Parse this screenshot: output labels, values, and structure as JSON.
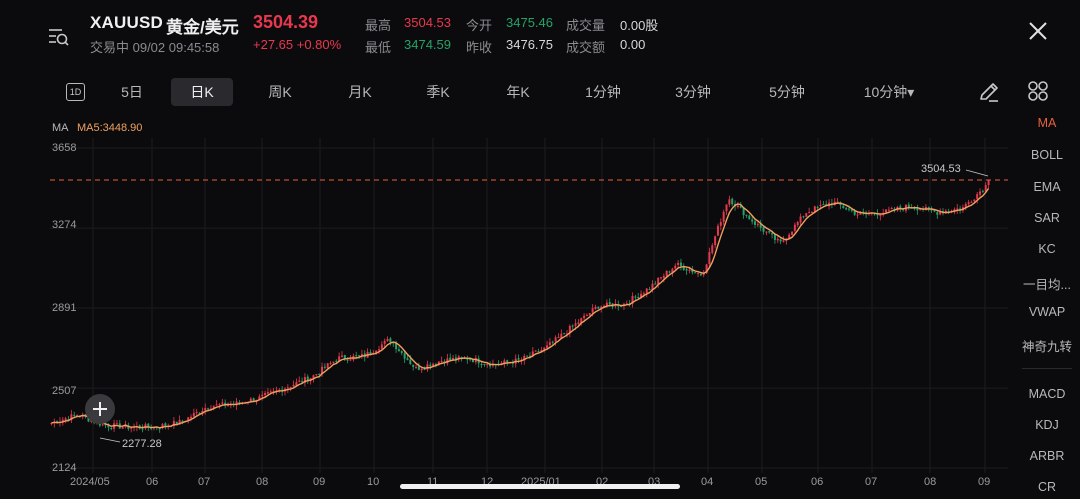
{
  "header": {
    "symbol": "XAUUSD",
    "name": "黄金/美元",
    "price": "3504.39",
    "status": "交易中 09/02 09:45:58",
    "change": "+27.65 +0.80%",
    "stats": [
      {
        "label": "最高",
        "value": "3504.53",
        "color": "red"
      },
      {
        "label": "今开",
        "value": "3475.46",
        "color": "green"
      },
      {
        "label": "成交量",
        "value": "0.00股",
        "color": "white"
      },
      {
        "label": "最低",
        "value": "3474.59",
        "color": "green"
      },
      {
        "label": "昨收",
        "value": "3476.75",
        "color": "white"
      },
      {
        "label": "成交额",
        "value": "0.00",
        "color": "white"
      }
    ]
  },
  "tabs": {
    "icon_label": "1D",
    "items": [
      "5日",
      "日K",
      "周K",
      "月K",
      "季K",
      "年K",
      "1分钟",
      "3分钟",
      "5分钟",
      "10分钟▾"
    ],
    "active": "日K"
  },
  "indicator": {
    "name": "MA",
    "value": "MA5:3448.90"
  },
  "sidebar": {
    "items": [
      "MA",
      "BOLL",
      "EMA",
      "SAR",
      "KC",
      "一目均...",
      "VWAP",
      "神奇九转",
      "MACD",
      "KDJ",
      "ARBR",
      "CR"
    ],
    "active": "MA"
  },
  "colors": {
    "up": "#e8384f",
    "down": "#26a269",
    "ma": "#f0a060",
    "accent": "#e8603c"
  },
  "chart_data": {
    "type": "candlestick",
    "title": "XAUUSD 日K",
    "x_tick_labels": [
      "2024/05",
      "06",
      "07",
      "08",
      "09",
      "10",
      "11",
      "12",
      "2025/01",
      "02",
      "03",
      "04",
      "05",
      "06",
      "07",
      "08",
      "09"
    ],
    "y_tick_labels": [
      "3658",
      "3274",
      "2891",
      "2507",
      "2124"
    ],
    "ylim": [
      2124,
      3658
    ],
    "max_marker": "3504.53",
    "min_marker": "2277.28",
    "price_line": 3504.53,
    "ma5_last": 3448.9,
    "approx_close_path": [
      [
        "2024/05",
        2340
      ],
      [
        "05-15",
        2380
      ],
      [
        "05-25",
        2330
      ],
      [
        "06",
        2320
      ],
      [
        "06-15",
        2320
      ],
      [
        "07",
        2345
      ],
      [
        "07-15",
        2420
      ],
      [
        "08",
        2430
      ],
      [
        "08-15",
        2460
      ],
      [
        "09",
        2510
      ],
      [
        "09-15",
        2560
      ],
      [
        "10",
        2650
      ],
      [
        "10-15",
        2660
      ],
      [
        "11",
        2740
      ],
      [
        "11-10",
        2600
      ],
      [
        "11-20",
        2640
      ],
      [
        "12",
        2650
      ],
      [
        "12-20",
        2620
      ],
      [
        "2025/01",
        2640
      ],
      [
        "01-20",
        2700
      ],
      [
        "02",
        2800
      ],
      [
        "02-15",
        2900
      ],
      [
        "03",
        2910
      ],
      [
        "03-15",
        2990
      ],
      [
        "04",
        3100
      ],
      [
        "04-10",
        3050
      ],
      [
        "04-22",
        3420
      ],
      [
        "05",
        3300
      ],
      [
        "05-15",
        3200
      ],
      [
        "06",
        3350
      ],
      [
        "06-15",
        3400
      ],
      [
        "07",
        3340
      ],
      [
        "07-15",
        3350
      ],
      [
        "08",
        3380
      ],
      [
        "08-15",
        3350
      ],
      [
        "08-25",
        3370
      ],
      [
        "09",
        3490
      ]
    ]
  }
}
